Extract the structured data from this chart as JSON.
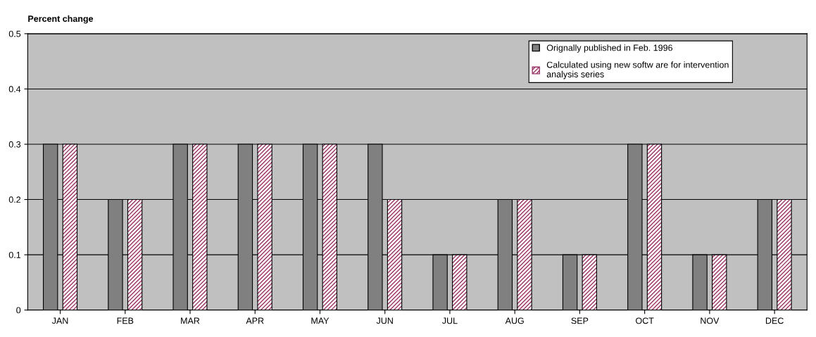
{
  "chart_data": {
    "type": "bar",
    "ylabel": "Percent change",
    "categories": [
      "JAN",
      "FEB",
      "MAR",
      "APR",
      "MAY",
      "JUN",
      "JUL",
      "AUG",
      "SEP",
      "OCT",
      "NOV",
      "DEC"
    ],
    "series": [
      {
        "name": "Orignally published in Feb. 1996",
        "color": "#808080",
        "values": [
          0.3,
          0.2,
          0.3,
          0.3,
          0.3,
          0.3,
          0.1,
          0.2,
          0.1,
          0.3,
          0.1,
          0.2
        ]
      },
      {
        "name": "Calculated using new softw are for intervention\nanalysis series",
        "color": "#993366",
        "values": [
          0.3,
          0.2,
          0.3,
          0.3,
          0.3,
          0.2,
          0.1,
          0.2,
          0.1,
          0.3,
          0.1,
          0.2
        ]
      }
    ],
    "ylim": [
      0,
      0.5
    ],
    "yticks": [
      0,
      0.1,
      0.2,
      0.3,
      0.4,
      0.5
    ],
    "grid": "y",
    "legend": "top right"
  }
}
